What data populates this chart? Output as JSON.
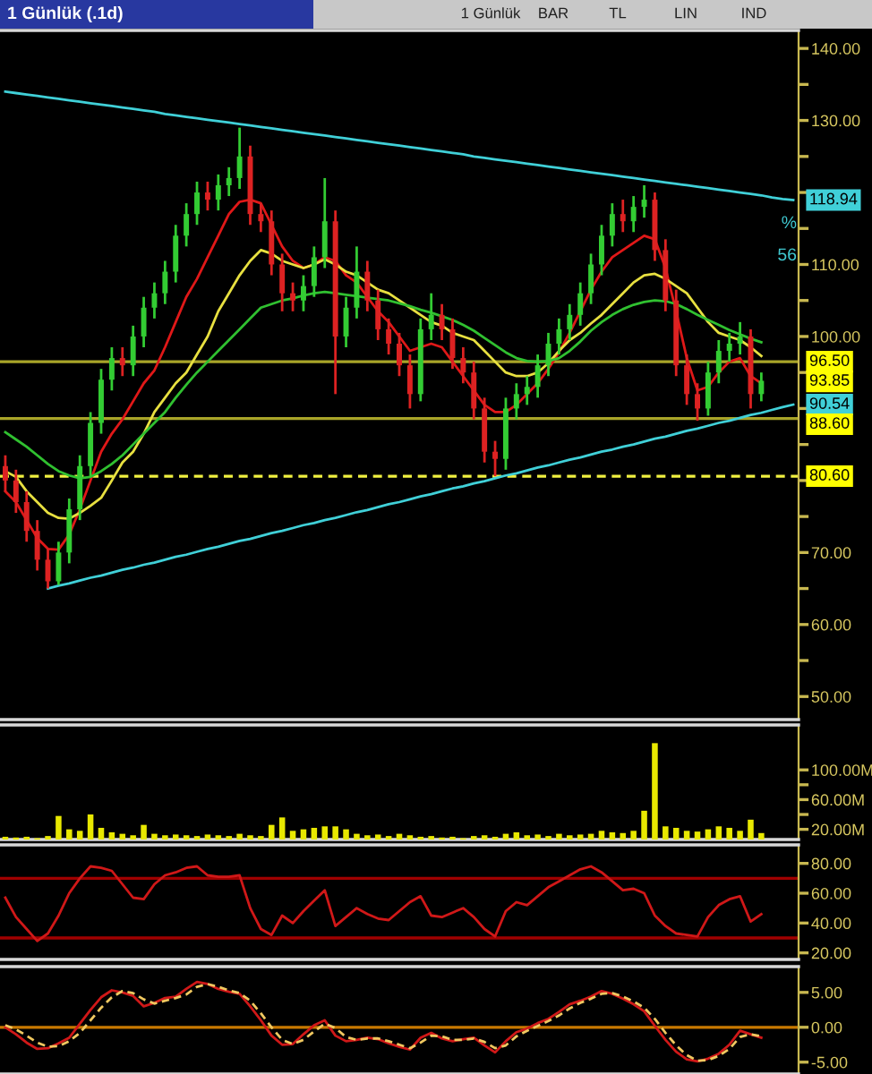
{
  "chart_data": [
    {
      "type": "candlestick",
      "title": "1 Günlük (.1d)",
      "annotations": [
        "1 Günlük",
        "BAR",
        "TL",
        "LIN",
        "IND",
        "%",
        "56"
      ],
      "categories": [
        null,
        null,
        null,
        null,
        null,
        null,
        null,
        null,
        null,
        null,
        null,
        null,
        null,
        null,
        null,
        null,
        null,
        null,
        null,
        null,
        null,
        null,
        null,
        null,
        null,
        null,
        null,
        null,
        null,
        null,
        null,
        null,
        null,
        null,
        null,
        null,
        null,
        null,
        null,
        null,
        null,
        null,
        null,
        null,
        null,
        null,
        null,
        null,
        null,
        null,
        null,
        null,
        null,
        null,
        null,
        null,
        null,
        null,
        null,
        null,
        null,
        null,
        null,
        null,
        null,
        null,
        null,
        null,
        null,
        null,
        null,
        null,
        null,
        null,
        null
      ],
      "ohlc": [
        [
          82,
          83.5,
          78.5,
          80
        ],
        [
          80,
          81.5,
          75.5,
          77
        ],
        [
          77,
          78.5,
          71.5,
          73
        ],
        [
          73,
          74.5,
          67.5,
          69
        ],
        [
          69,
          70.5,
          65,
          66
        ],
        [
          66,
          71.5,
          65.5,
          70
        ],
        [
          70,
          77.5,
          68.5,
          76
        ],
        [
          76,
          83.5,
          74.5,
          82
        ],
        [
          82,
          89.5,
          80.5,
          88
        ],
        [
          88,
          95.5,
          86.5,
          94
        ],
        [
          94,
          98.5,
          92.5,
          97
        ],
        [
          97,
          98.5,
          94.5,
          96
        ],
        [
          96,
          101.5,
          94.5,
          100
        ],
        [
          100,
          105.5,
          98.5,
          104
        ],
        [
          104,
          107.5,
          102.5,
          106
        ],
        [
          106,
          110.5,
          104.5,
          109
        ],
        [
          109,
          115.5,
          107.5,
          114
        ],
        [
          114,
          118.5,
          112.5,
          117
        ],
        [
          117,
          121.5,
          115.5,
          120
        ],
        [
          120,
          121.5,
          117.5,
          119
        ],
        [
          119,
          122.5,
          117.5,
          121
        ],
        [
          121,
          123.5,
          119.5,
          122
        ],
        [
          122,
          129,
          120.5,
          125
        ],
        [
          125,
          126.5,
          115.5,
          117
        ],
        [
          117,
          118.5,
          114.5,
          116
        ],
        [
          116,
          117.5,
          108.5,
          110
        ],
        [
          110,
          111.5,
          103.5,
          106
        ],
        [
          106,
          107.5,
          103.5,
          105
        ],
        [
          105,
          108.5,
          103.5,
          107
        ],
        [
          107,
          112.5,
          105.5,
          111
        ],
        [
          111,
          122,
          109.5,
          116
        ],
        [
          116,
          117.5,
          92,
          100
        ],
        [
          100,
          105.5,
          98.5,
          104
        ],
        [
          104,
          112.5,
          102.5,
          109
        ],
        [
          109,
          110.5,
          103.5,
          105
        ],
        [
          105,
          106.5,
          99.5,
          101
        ],
        [
          101,
          102.5,
          97.5,
          99
        ],
        [
          99,
          100.5,
          94.5,
          96
        ],
        [
          96,
          97.5,
          90,
          92
        ],
        [
          92,
          102.5,
          91,
          101
        ],
        [
          101,
          106,
          99.5,
          103
        ],
        [
          103,
          104.5,
          99.5,
          101
        ],
        [
          101,
          102.5,
          95.5,
          97
        ],
        [
          97,
          98.5,
          93.5,
          95
        ],
        [
          95,
          96.5,
          88.5,
          90
        ],
        [
          90,
          91.5,
          82.5,
          84
        ],
        [
          84,
          85.5,
          80.6,
          83
        ],
        [
          83,
          91.5,
          81.5,
          90
        ],
        [
          90,
          93.5,
          88.5,
          92
        ],
        [
          92,
          94.5,
          90.5,
          93
        ],
        [
          93,
          97.5,
          91.5,
          96
        ],
        [
          96,
          100.5,
          94.5,
          99
        ],
        [
          99,
          102.5,
          97.5,
          101
        ],
        [
          101,
          104.5,
          99.5,
          103
        ],
        [
          103,
          107.5,
          101.5,
          106
        ],
        [
          106,
          111.5,
          104.5,
          110
        ],
        [
          110,
          115.5,
          108.5,
          114
        ],
        [
          114,
          118.5,
          112.5,
          117
        ],
        [
          117,
          119,
          114.5,
          116
        ],
        [
          116,
          119.5,
          114.5,
          118
        ],
        [
          118,
          121,
          116.5,
          119
        ],
        [
          119,
          120,
          110.5,
          112
        ],
        [
          112,
          113.5,
          103.5,
          105
        ],
        [
          105,
          106.5,
          94.5,
          96
        ],
        [
          96,
          97.5,
          90.5,
          92
        ],
        [
          92,
          93.5,
          88.3,
          90
        ],
        [
          90,
          96.5,
          89,
          95
        ],
        [
          95,
          99.5,
          93.5,
          98
        ],
        [
          98,
          100.5,
          96.5,
          99
        ],
        [
          99,
          102,
          97.5,
          100
        ],
        [
          100,
          101,
          90,
          92
        ],
        [
          92,
          95,
          91,
          93.85
        ],
        null,
        null,
        null
      ],
      "colors": [
        "#dd2222",
        "#dd2222",
        "#dd2222",
        "#dd2222",
        "#dd2222",
        "#33cc33",
        "#33cc33",
        "#33cc33",
        "#33cc33",
        "#33cc33",
        "#33cc33",
        "#dd2222",
        "#33cc33",
        "#33cc33",
        "#33cc33",
        "#33cc33",
        "#33cc33",
        "#33cc33",
        "#33cc33",
        "#dd2222",
        "#33cc33",
        "#33cc33",
        "#33cc33",
        "#dd2222",
        "#dd2222",
        "#dd2222",
        "#dd2222",
        "#dd2222",
        "#33cc33",
        "#33cc33",
        "#33cc33",
        "#dd2222",
        "#33cc33",
        "#33cc33",
        "#dd2222",
        "#dd2222",
        "#dd2222",
        "#dd2222",
        "#dd2222",
        "#33cc33",
        "#33cc33",
        "#dd2222",
        "#dd2222",
        "#dd2222",
        "#dd2222",
        "#dd2222",
        "#dd2222",
        "#33cc33",
        "#33cc33",
        "#33cc33",
        "#33cc33",
        "#33cc33",
        "#33cc33",
        "#33cc33",
        "#33cc33",
        "#33cc33",
        "#33cc33",
        "#33cc33",
        "#dd2222",
        "#33cc33",
        "#33cc33",
        "#dd2222",
        "#dd2222",
        "#dd2222",
        "#dd2222",
        "#dd2222",
        "#33cc33",
        "#33cc33",
        "#33cc33",
        "#33cc33",
        "#dd2222",
        "#33cc33",
        null,
        null,
        null
      ],
      "value_labels": [
        null,
        null,
        null,
        null,
        null,
        null,
        null,
        null,
        null,
        null,
        null,
        null,
        null,
        null,
        null,
        null,
        null,
        null,
        null,
        null,
        null,
        null,
        null,
        null,
        null,
        null,
        null,
        null,
        null,
        null,
        null,
        null,
        null,
        null,
        null,
        null,
        null,
        null,
        null,
        null,
        null,
        null,
        null,
        null,
        null,
        null,
        null,
        null,
        null,
        null,
        null,
        null,
        null,
        null,
        null,
        null,
        null,
        null,
        null,
        null,
        null,
        null,
        null,
        null,
        null,
        null,
        null,
        null,
        null,
        null,
        null,
        "93.85",
        null,
        null,
        null
      ],
      "series": [
        {
          "type": "line",
          "color": "#e01818",
          "values": [
            78.5,
            77,
            74.5,
            72,
            70.5,
            70.4,
            72.5,
            76,
            80,
            84,
            86.5,
            88.5,
            91,
            93.5,
            95.3,
            98.5,
            102,
            105.5,
            108,
            111,
            114,
            117,
            118.7,
            119,
            118.5,
            115.5,
            112.5,
            110.5,
            109.5,
            110,
            111,
            110.5,
            108.5,
            107.5,
            105.5,
            103.5,
            102,
            100,
            98,
            98.5,
            99,
            98.5,
            96.5,
            94.5,
            92.5,
            90.5,
            89.5,
            89.5,
            90.5,
            92,
            93.5,
            95.5,
            97.8,
            100.5,
            103.5,
            106.5,
            109,
            111,
            112,
            113,
            114,
            113.5,
            109.5,
            103.5,
            97,
            92.5,
            93,
            95,
            96.5,
            97,
            94.5,
            93.5,
            null,
            null,
            null
          ]
        },
        {
          "type": "line",
          "color": "#e8e040",
          "values": [
            81.3,
            80.5,
            78.5,
            77,
            75.5,
            74.8,
            74.7,
            75.5,
            76.5,
            77.6,
            80,
            82.5,
            84,
            86.5,
            89.5,
            91.5,
            93.5,
            95,
            97.5,
            100,
            103.5,
            106,
            108.5,
            110.5,
            112,
            111.5,
            110.5,
            110,
            109.5,
            110,
            110.7,
            110,
            109,
            108.5,
            107.5,
            106.5,
            106,
            105,
            104,
            103,
            102,
            101.5,
            100.5,
            100,
            99.5,
            98,
            96.5,
            95,
            94.5,
            94.5,
            95,
            96.3,
            98,
            99.5,
            100.5,
            101.8,
            103,
            104.5,
            106,
            107.5,
            108.5,
            108.7,
            108,
            107,
            106,
            104,
            102,
            100.5,
            100,
            99.5,
            98.5,
            97.3,
            null,
            null,
            null
          ]
        },
        {
          "type": "line",
          "color": "#30c030",
          "values": [
            86.7,
            85.7,
            84.7,
            83.5,
            82.3,
            81.3,
            80.7,
            80.3,
            80.5,
            81.3,
            82.3,
            83.5,
            85,
            86.5,
            88,
            89.5,
            91.5,
            93.3,
            95,
            96.5,
            98,
            99.5,
            101,
            102.5,
            104,
            104.5,
            105,
            105.3,
            105.7,
            106,
            106.2,
            106,
            105.8,
            105.6,
            105.4,
            105.2,
            105,
            104.6,
            104.2,
            103.7,
            103.3,
            102.8,
            102.3,
            101.6,
            100.8,
            99.8,
            98.8,
            97.8,
            97,
            96.6,
            96.5,
            96.6,
            97,
            98,
            99.3,
            100.8,
            102,
            103,
            103.8,
            104.4,
            104.8,
            105,
            104.9,
            104.5,
            103.8,
            103,
            102.3,
            101.6,
            100.9,
            100.3,
            99.7,
            99.2,
            null,
            null,
            null
          ]
        },
        {
          "type": "line",
          "color": "#40d0d8",
          "values": [
            134.0,
            133.8,
            133.6,
            133.4,
            133.2,
            133.0,
            132.8,
            132.6,
            132.4,
            132.2,
            132.0,
            131.8,
            131.6,
            131.4,
            131.2,
            130.9,
            130.7,
            130.5,
            130.3,
            130.1,
            129.9,
            129.7,
            129.5,
            129.3,
            129.1,
            128.9,
            128.7,
            128.5,
            128.3,
            128.1,
            127.9,
            127.7,
            127.5,
            127.3,
            127.1,
            126.9,
            126.7,
            126.5,
            126.3,
            126.1,
            125.9,
            125.7,
            125.5,
            125.3,
            125.0,
            124.8,
            124.6,
            124.4,
            124.2,
            124.0,
            123.8,
            123.6,
            123.4,
            123.2,
            123.0,
            122.8,
            122.6,
            122.4,
            122.2,
            122.0,
            121.8,
            121.6,
            121.4,
            121.2,
            121.0,
            120.8,
            120.6,
            120.4,
            120.2,
            120.0,
            119.8,
            119.6,
            119.3,
            119.1,
            118.94
          ],
          "value_labels": [
            null,
            null,
            null,
            null,
            null,
            null,
            null,
            null,
            null,
            null,
            null,
            null,
            null,
            null,
            null,
            null,
            null,
            null,
            null,
            null,
            null,
            null,
            null,
            null,
            null,
            null,
            null,
            null,
            null,
            null,
            null,
            null,
            null,
            null,
            null,
            null,
            null,
            null,
            null,
            null,
            null,
            null,
            null,
            null,
            null,
            null,
            null,
            null,
            null,
            null,
            null,
            null,
            null,
            null,
            null,
            null,
            null,
            null,
            null,
            null,
            null,
            null,
            null,
            null,
            null,
            null,
            null,
            null,
            null,
            null,
            null,
            null,
            null,
            null,
            "118.94"
          ]
        },
        {
          "type": "line",
          "color": "#40d0d8",
          "values": [
            null,
            null,
            null,
            null,
            65.0,
            65.4,
            65.7,
            66.1,
            66.5,
            66.8,
            67.2,
            67.6,
            67.9,
            68.3,
            68.6,
            69.0,
            69.4,
            69.7,
            70.1,
            70.5,
            70.8,
            71.2,
            71.6,
            71.9,
            72.3,
            72.7,
            73.0,
            73.4,
            73.8,
            74.1,
            74.5,
            74.8,
            75.2,
            75.6,
            75.9,
            76.3,
            76.7,
            77.0,
            77.4,
            77.8,
            78.1,
            78.5,
            78.9,
            79.2,
            79.6,
            79.9,
            80.3,
            80.7,
            81.0,
            81.4,
            81.8,
            82.1,
            82.5,
            82.9,
            83.2,
            83.6,
            84.0,
            84.3,
            84.7,
            85.0,
            85.4,
            85.8,
            86.1,
            86.5,
            86.9,
            87.2,
            87.6,
            88.0,
            88.3,
            88.7,
            89.1,
            89.4,
            89.8,
            90.2,
            90.54
          ],
          "value_labels": [
            null,
            null,
            null,
            null,
            null,
            null,
            null,
            null,
            null,
            null,
            null,
            null,
            null,
            null,
            null,
            null,
            null,
            null,
            null,
            null,
            null,
            null,
            null,
            null,
            null,
            null,
            null,
            null,
            null,
            null,
            null,
            null,
            null,
            null,
            null,
            null,
            null,
            null,
            null,
            null,
            null,
            null,
            null,
            null,
            null,
            null,
            null,
            null,
            null,
            null,
            null,
            null,
            null,
            null,
            null,
            null,
            null,
            null,
            null,
            null,
            null,
            null,
            null,
            null,
            null,
            null,
            null,
            null,
            null,
            null,
            null,
            null,
            null,
            null,
            "90.54"
          ]
        }
      ],
      "ylim": [
        46.8,
        142.5
      ],
      "yticks": [
        {
          "value": 50,
          "label": "50.00"
        },
        {
          "value": 55,
          "label": null
        },
        {
          "value": 60,
          "label": "60.00"
        },
        {
          "value": 65,
          "label": null
        },
        {
          "value": 70,
          "label": "70.00"
        },
        {
          "value": 75,
          "label": null
        },
        {
          "value": 80,
          "label": null
        },
        {
          "value": 85,
          "label": null
        },
        {
          "value": 90,
          "label": null
        },
        {
          "value": 95,
          "label": null
        },
        {
          "value": 100,
          "label": "100.00"
        },
        {
          "value": 105,
          "label": null
        },
        {
          "value": 110,
          "label": "110.00"
        },
        {
          "value": 115,
          "label": null
        },
        {
          "value": 120,
          "label": null
        },
        {
          "value": 125,
          "label": null
        },
        {
          "value": 130,
          "label": "130.00"
        },
        {
          "value": 135,
          "label": null
        },
        {
          "value": 140,
          "label": "140.00"
        }
      ],
      "ref_lines": [
        {
          "axis": "y",
          "value": 96.5,
          "label": "96.50",
          "color": "#a8a428"
        },
        {
          "axis": "y",
          "value": 88.6,
          "label": "88.60",
          "color": "#a8a428"
        },
        {
          "axis": "y",
          "value": 80.6,
          "label": "80.60",
          "color": "#f0f040",
          "line_style": "dashed"
        }
      ],
      "tick_labels": "y"
    },
    {
      "type": "bar",
      "categories": [
        null,
        null,
        null,
        null,
        null,
        null,
        null,
        null,
        null,
        null,
        null,
        null,
        null,
        null,
        null,
        null,
        null,
        null,
        null,
        null,
        null,
        null,
        null,
        null,
        null,
        null,
        null,
        null,
        null,
        null,
        null,
        null,
        null,
        null,
        null,
        null,
        null,
        null,
        null,
        null,
        null,
        null,
        null,
        null,
        null,
        null,
        null,
        null,
        null,
        null,
        null,
        null,
        null,
        null,
        null,
        null,
        null,
        null,
        null,
        null,
        null,
        null,
        null,
        null,
        null,
        null,
        null,
        null,
        null,
        null,
        null,
        null,
        null,
        null,
        null
      ],
      "values": [
        10,
        9,
        10,
        8,
        11,
        38,
        20,
        18,
        40,
        22,
        16,
        14,
        12,
        26,
        14,
        12,
        13,
        12,
        11,
        13,
        12,
        11,
        14,
        12,
        11,
        26,
        36,
        18,
        20,
        22,
        24,
        24,
        20,
        14,
        12,
        13,
        11,
        14,
        12,
        10,
        11,
        9,
        10,
        8,
        11,
        12,
        10,
        14,
        16,
        12,
        13,
        11,
        14,
        12,
        13,
        14,
        18,
        16,
        15,
        18,
        45,
        136,
        24,
        22,
        18,
        17,
        20,
        24,
        22,
        18,
        33,
        15,
        null,
        null,
        null
      ],
      "color": "#e8e800",
      "ylim": [
        6.3,
        160.5
      ],
      "yticks": [
        {
          "value": 20,
          "label": "20.00M"
        },
        {
          "value": 40,
          "label": null
        },
        {
          "value": 60,
          "label": "60.00M"
        },
        {
          "value": 80,
          "label": null
        },
        {
          "value": 100,
          "label": "100.00M"
        }
      ],
      "tick_labels": "y"
    },
    {
      "type": "line",
      "categories": [
        null,
        null,
        null,
        null,
        null,
        null,
        null,
        null,
        null,
        null,
        null,
        null,
        null,
        null,
        null,
        null,
        null,
        null,
        null,
        null,
        null,
        null,
        null,
        null,
        null,
        null,
        null,
        null,
        null,
        null,
        null,
        null,
        null,
        null,
        null,
        null,
        null,
        null,
        null,
        null,
        null,
        null,
        null,
        null,
        null,
        null,
        null,
        null,
        null,
        null,
        null,
        null,
        null,
        null,
        null,
        null,
        null,
        null,
        null,
        null,
        null,
        null,
        null,
        null,
        null,
        null,
        null,
        null,
        null,
        null,
        null,
        null,
        null,
        null,
        null
      ],
      "series": [
        {
          "color": "#d01818",
          "values": [
            57,
            44,
            36,
            28,
            33,
            45,
            60,
            70,
            78,
            77,
            75,
            66,
            57,
            56,
            66,
            72,
            74,
            77,
            78,
            72,
            71,
            71,
            72,
            50,
            36,
            32,
            45,
            40,
            48,
            55,
            62,
            38,
            44,
            50,
            46,
            43,
            42,
            48,
            54,
            58,
            45,
            44,
            47,
            50,
            44,
            36,
            31,
            48,
            54,
            52,
            58,
            64,
            68,
            72,
            76,
            78,
            74,
            68,
            62,
            63,
            60,
            45,
            38,
            33,
            32,
            31,
            44,
            52,
            56,
            58,
            41,
            46,
            null,
            null,
            null
          ]
        }
      ],
      "ylim": [
        15.6,
        92.4
      ],
      "yticks": [
        {
          "value": 20,
          "label": "20.00"
        },
        {
          "value": 40,
          "label": "40.00"
        },
        {
          "value": 60,
          "label": "60.00"
        },
        {
          "value": 80,
          "label": "80.00"
        }
      ],
      "ref_lines": [
        {
          "axis": "y",
          "value": 30,
          "color": "#a00000"
        },
        {
          "axis": "y",
          "value": 70,
          "color": "#a00000"
        }
      ],
      "tick_labels": "y"
    },
    {
      "type": "line",
      "categories": [
        null,
        null,
        null,
        null,
        null,
        null,
        null,
        null,
        null,
        null,
        null,
        null,
        null,
        null,
        null,
        null,
        null,
        null,
        null,
        null,
        null,
        null,
        null,
        null,
        null,
        null,
        null,
        null,
        null,
        null,
        null,
        null,
        null,
        null,
        null,
        null,
        null,
        null,
        null,
        null,
        null,
        null,
        null,
        null,
        null,
        null,
        null,
        null,
        null,
        null,
        null,
        null,
        null,
        null,
        null,
        null,
        null,
        null,
        null,
        null,
        null,
        null,
        null,
        null,
        null,
        null,
        null,
        null,
        null,
        null,
        null,
        null,
        null,
        null,
        null
      ],
      "series": [
        {
          "color": "#d01818",
          "values": [
            0.0,
            -1.0,
            -2.2,
            -3.1,
            -3.0,
            -2.3,
            -1.5,
            0.5,
            2.5,
            4.3,
            5.3,
            5.0,
            4.5,
            3.0,
            3.5,
            4.2,
            4.4,
            5.5,
            6.5,
            6.2,
            5.5,
            5.1,
            4.8,
            3.0,
            1.0,
            -1.2,
            -2.5,
            -2.4,
            -1.0,
            0.3,
            1.0,
            -1.2,
            -2.0,
            -1.8,
            -1.5,
            -1.7,
            -2.3,
            -2.8,
            -3.2,
            -1.5,
            -0.8,
            -1.6,
            -2.0,
            -1.7,
            -1.5,
            -2.6,
            -3.6,
            -2.0,
            -0.7,
            -0.2,
            0.6,
            1.2,
            2.2,
            3.3,
            3.8,
            4.4,
            5.2,
            4.8,
            4.1,
            3.3,
            2.3,
            0.2,
            -1.8,
            -3.5,
            -4.6,
            -4.9,
            -4.5,
            -3.8,
            -2.5,
            -0.5,
            -1.0,
            -1.5,
            null,
            null,
            null
          ]
        },
        {
          "color": "#f0c860",
          "line_style": "dashed",
          "values": [
            0.3,
            -0.3,
            -1.2,
            -2.2,
            -2.8,
            -2.7,
            -2.0,
            -0.8,
            1.0,
            2.8,
            4.3,
            5.2,
            4.9,
            4.0,
            3.4,
            3.8,
            4.2,
            4.7,
            5.8,
            6.2,
            5.8,
            5.3,
            4.9,
            3.8,
            2.0,
            0.0,
            -1.8,
            -2.4,
            -1.8,
            -0.6,
            0.5,
            -0.1,
            -1.4,
            -1.8,
            -1.6,
            -1.6,
            -2.0,
            -2.5,
            -3.0,
            -2.2,
            -1.2,
            -1.3,
            -1.8,
            -1.8,
            -1.6,
            -2.1,
            -3.0,
            -2.6,
            -1.3,
            -0.5,
            0.2,
            0.9,
            1.7,
            2.7,
            3.5,
            4.1,
            4.8,
            4.9,
            4.4,
            3.7,
            2.8,
            1.2,
            -0.8,
            -2.6,
            -4.0,
            -4.8,
            -4.7,
            -4.1,
            -3.1,
            -1.4,
            -1.0,
            -1.3,
            null,
            null,
            null
          ]
        }
      ],
      "ylim": [
        -6.7,
        8.7
      ],
      "yticks": [
        {
          "value": -5,
          "label": "-5.00"
        },
        {
          "value": 0,
          "label": "0.00"
        },
        {
          "value": 5,
          "label": "5.00"
        }
      ],
      "ref_lines": [
        {
          "axis": "y",
          "value": 0,
          "color": "#c87800"
        }
      ],
      "tick_labels": "y"
    }
  ]
}
